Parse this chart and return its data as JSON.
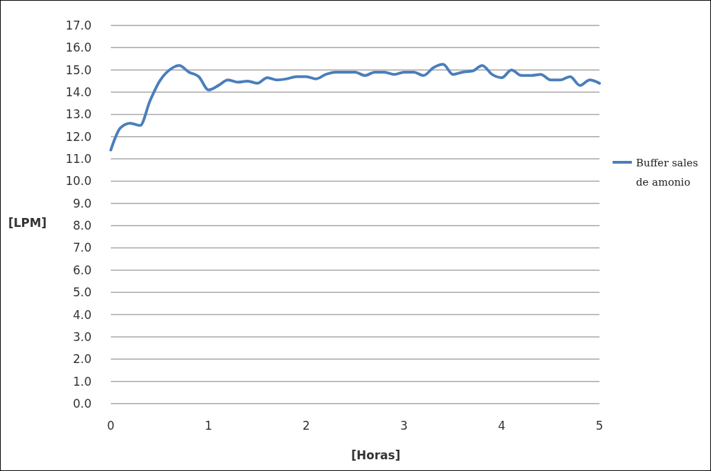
{
  "chart_data": {
    "type": "line",
    "xlabel": "[Horas]",
    "ylabel": "[LPM]",
    "xlim": [
      0,
      5
    ],
    "xticks": [
      0,
      1,
      2,
      3,
      4,
      5
    ],
    "ylim": [
      0,
      17
    ],
    "yticks": [
      {
        "value": 0,
        "label": "0.0"
      },
      {
        "value": 1,
        "label": "1.0"
      },
      {
        "value": 2,
        "label": "2.0"
      },
      {
        "value": 3,
        "label": "3.0"
      },
      {
        "value": 4,
        "label": "4.0"
      },
      {
        "value": 5,
        "label": "5.0"
      },
      {
        "value": 6,
        "label": "6.0"
      },
      {
        "value": 7,
        "label": "7.0"
      },
      {
        "value": 8,
        "label": "8.0"
      },
      {
        "value": 9,
        "label": "9.0"
      },
      {
        "value": 10,
        "label": "10.0"
      },
      {
        "value": 11,
        "label": "11.0"
      },
      {
        "value": 12,
        "label": "12.0"
      },
      {
        "value": 13,
        "label": "13.0"
      },
      {
        "value": 14,
        "label": "14.0"
      },
      {
        "value": 15,
        "label": "15.0"
      },
      {
        "value": 16,
        "label": "16.0"
      },
      {
        "value": 17,
        "label": "17.0"
      }
    ],
    "grid": "y",
    "legend": "right",
    "x": [
      0,
      0.1,
      0.2,
      0.3,
      0.4,
      0.5,
      0.6,
      0.7,
      0.8,
      0.9,
      1.0,
      1.1,
      1.2,
      1.3,
      1.4,
      1.5,
      1.6,
      1.7,
      1.8,
      1.9,
      2.0,
      2.1,
      2.2,
      2.3,
      2.4,
      2.5,
      2.6,
      2.7,
      2.8,
      2.9,
      3.0,
      3.1,
      3.2,
      3.3,
      3.4,
      3.5,
      3.6,
      3.7,
      3.8,
      3.9,
      4.0,
      4.1,
      4.2,
      4.3,
      4.4,
      4.5,
      4.6,
      4.7,
      4.8,
      4.9,
      5.0
    ],
    "series": [
      {
        "name": "Buffer sales de amonio",
        "color": "#4a7ebb",
        "values": [
          11.4,
          12.4,
          12.6,
          12.5,
          13.6,
          14.5,
          15.0,
          15.2,
          14.9,
          14.7,
          14.1,
          14.3,
          14.55,
          14.45,
          14.5,
          14.4,
          14.65,
          14.55,
          14.6,
          14.7,
          14.7,
          14.6,
          14.8,
          14.9,
          14.9,
          14.9,
          14.75,
          14.9,
          14.9,
          14.8,
          14.9,
          14.9,
          14.75,
          15.1,
          15.25,
          14.8,
          14.9,
          14.95,
          15.2,
          14.8,
          14.65,
          15.0,
          14.75,
          14.75,
          14.8,
          14.55,
          14.55,
          14.7,
          14.3,
          14.55,
          14.4
        ]
      }
    ]
  }
}
